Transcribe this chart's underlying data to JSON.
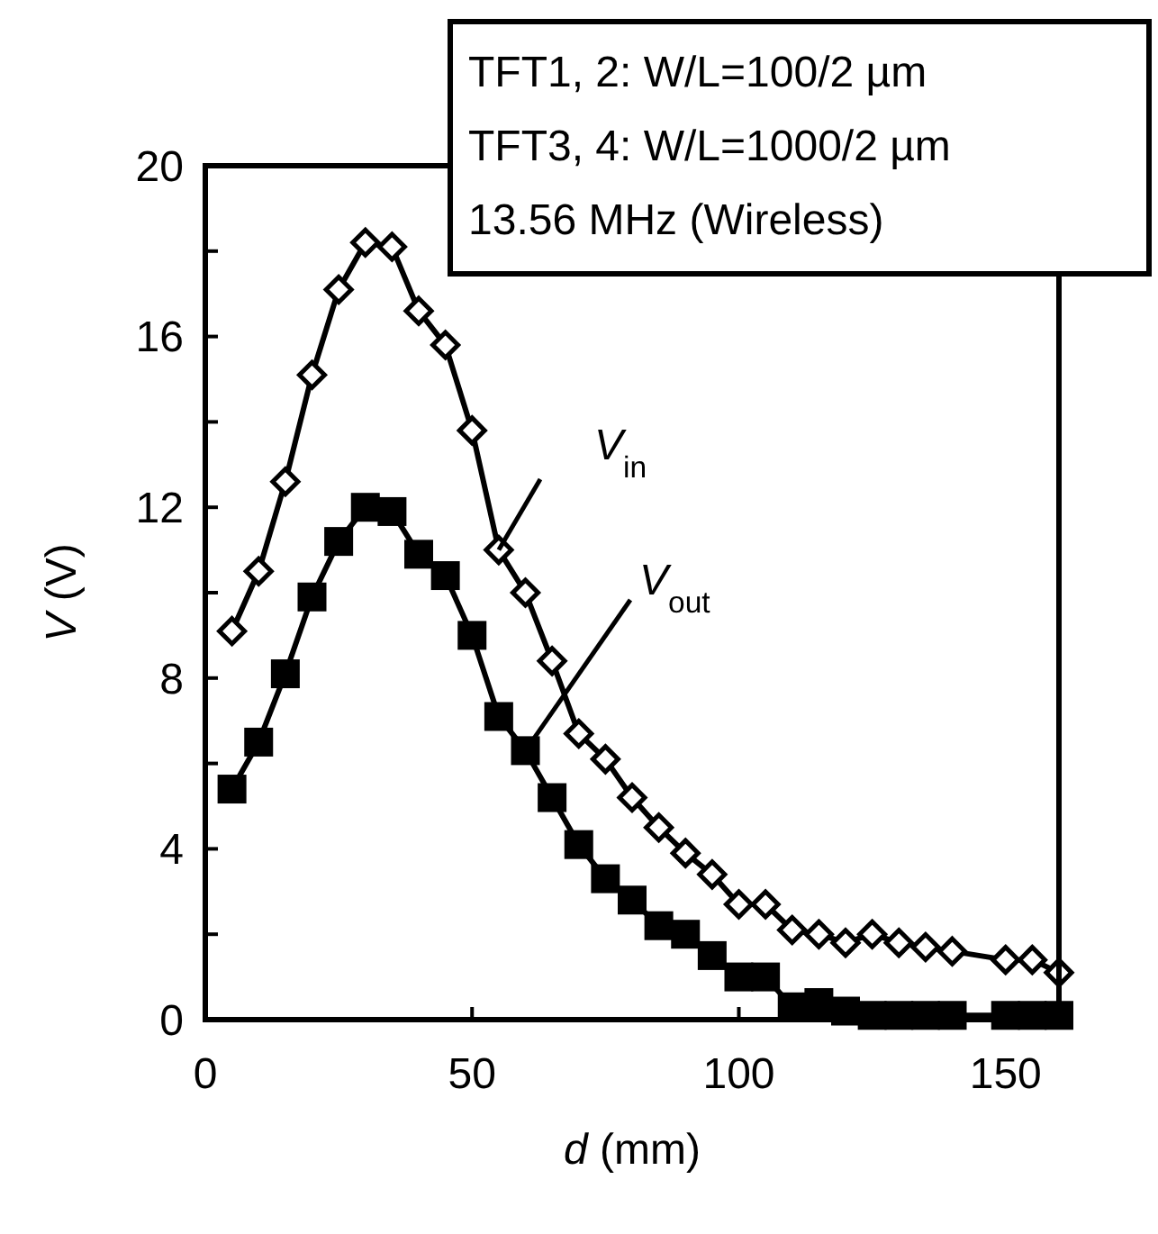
{
  "chart_data": {
    "type": "line",
    "xlabel": "d (mm)",
    "ylabel": "V (V)",
    "x": [
      5,
      10,
      15,
      20,
      25,
      30,
      35,
      40,
      45,
      50,
      55,
      60,
      65,
      70,
      75,
      80,
      85,
      90,
      95,
      100,
      105,
      110,
      115,
      120,
      125,
      130,
      135,
      140,
      150,
      155,
      160
    ],
    "series": [
      {
        "name": "V$_{in}$",
        "color": "#000000",
        "marker": "diamond",
        "values": [
          9.1,
          10.5,
          12.6,
          15.1,
          17.1,
          18.2,
          18.1,
          16.6,
          15.8,
          13.8,
          11.0,
          10.0,
          8.4,
          6.7,
          6.1,
          5.2,
          4.5,
          3.9,
          3.4,
          2.7,
          2.7,
          2.1,
          2.0,
          1.8,
          2.0,
          1.8,
          1.7,
          1.6,
          1.4,
          1.4,
          1.1
        ]
      },
      {
        "name": "V$_{out}$",
        "color": "#000000",
        "marker": "square",
        "values": [
          5.4,
          6.5,
          8.1,
          9.9,
          11.2,
          12.0,
          11.9,
          10.9,
          10.4,
          9.0,
          7.1,
          6.3,
          5.2,
          4.1,
          3.3,
          2.8,
          2.2,
          2.0,
          1.5,
          1.0,
          1.0,
          0.3,
          0.4,
          0.2,
          0.1,
          0.1,
          0.1,
          0.1,
          0.1,
          0.1,
          0.1
        ]
      }
    ],
    "xlim": [
      0,
      160
    ],
    "xticks": [
      0,
      50,
      100,
      150
    ],
    "ylim": [
      0,
      20
    ],
    "yticks": [
      0,
      {
        "value": 2,
        "label": null
      },
      4,
      {
        "value": 6,
        "label": null
      },
      8,
      {
        "value": 10,
        "label": null
      },
      12,
      {
        "value": 14,
        "label": null
      },
      16,
      {
        "value": 18,
        "label": null
      },
      20
    ],
    "grid": false,
    "line_style": "solid",
    "annotations": [
      "TFT1, 2: W/L=100/2 µm",
      "TFT3, 4: W/L=1000/2 µm",
      "13.56 MHz (Wireless)"
    ]
  }
}
